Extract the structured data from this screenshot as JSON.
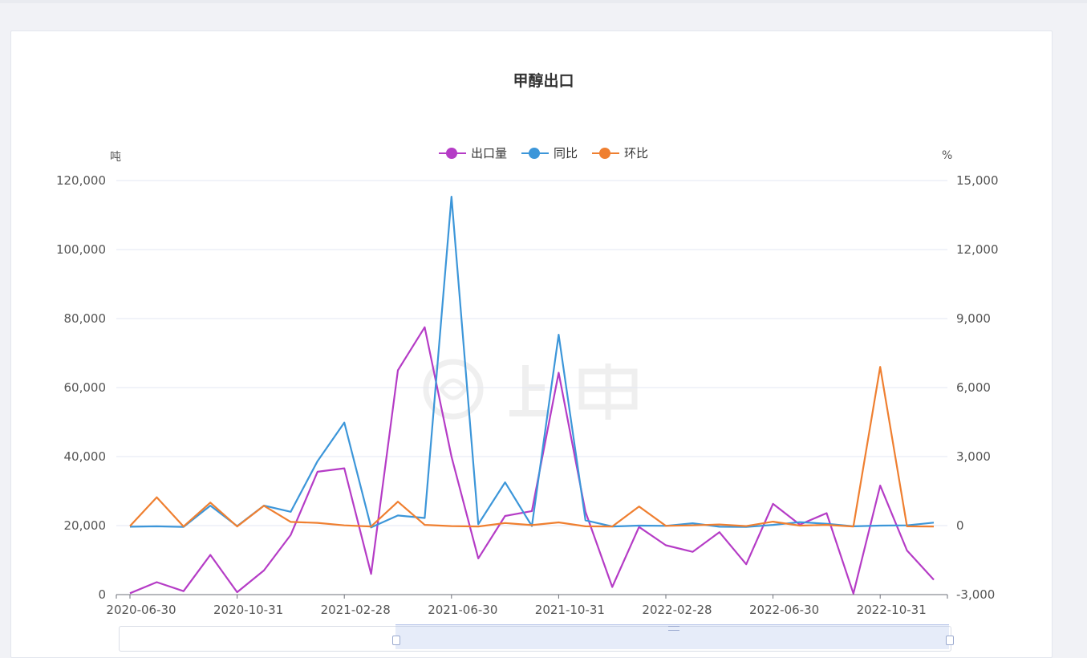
{
  "chart_data": {
    "type": "line",
    "title": "甲醇出口",
    "y_left_unit": "吨",
    "y_right_unit": "%",
    "x_labels_shown": [
      "2020-06-30",
      "2020-10-31",
      "2021-02-28",
      "2021-06-30",
      "2021-10-31",
      "2022-02-28",
      "2022-06-30",
      "2022-10-31"
    ],
    "x": [
      "2020-06",
      "2020-07",
      "2020-08",
      "2020-09",
      "2020-10",
      "2020-11",
      "2020-12",
      "2021-01",
      "2021-02",
      "2021-03",
      "2021-04",
      "2021-05",
      "2021-06",
      "2021-07",
      "2021-08",
      "2021-09",
      "2021-10",
      "2021-11",
      "2021-12",
      "2022-01",
      "2022-02",
      "2022-03",
      "2022-04",
      "2022-05",
      "2022-06",
      "2022-07",
      "2022-08",
      "2022-09",
      "2022-10",
      "2022-11",
      "2022-12"
    ],
    "y_left": {
      "min": 0,
      "max": 120000,
      "ticks": [
        "0",
        "20,000",
        "40,000",
        "60,000",
        "80,000",
        "100,000",
        "120,000"
      ]
    },
    "y_right": {
      "min": -3000,
      "max": 15000,
      "ticks": [
        "-3,000",
        "0",
        "3,000",
        "6,000",
        "9,000",
        "12,000",
        "15,000"
      ]
    },
    "grid": true,
    "legend_position": "top-center",
    "series": [
      {
        "name": "出口量",
        "axis": "left",
        "color": "#b53cc6",
        "values": [
          400,
          3600,
          1000,
          11500,
          700,
          7000,
          17300,
          35600,
          36600,
          6000,
          65000,
          77500,
          40000,
          10500,
          22800,
          24200,
          64300,
          24000,
          2200,
          19600,
          14300,
          12400,
          18100,
          8800,
          26300,
          20300,
          23600,
          300,
          31600,
          12800,
          4300
        ]
      },
      {
        "name": "同比",
        "axis": "right",
        "color": "#3c96d9",
        "values": [
          -50,
          -30,
          -60,
          870,
          -20,
          870,
          600,
          2800,
          4480,
          -80,
          440,
          330,
          14300,
          60,
          1880,
          -20,
          8300,
          230,
          -40,
          0,
          -10,
          100,
          -50,
          -60,
          30,
          150,
          80,
          -30,
          0,
          10,
          130
        ]
      },
      {
        "name": "环比",
        "axis": "right",
        "color": "#ef7f30",
        "values": [
          -20,
          1230,
          -40,
          1000,
          -40,
          860,
          160,
          120,
          10,
          -40,
          1040,
          30,
          -20,
          -40,
          110,
          20,
          140,
          -30,
          -40,
          830,
          -10,
          10,
          50,
          -20,
          170,
          0,
          30,
          -40,
          6900,
          -30,
          -40
        ]
      }
    ]
  },
  "watermark_text": "上甲"
}
